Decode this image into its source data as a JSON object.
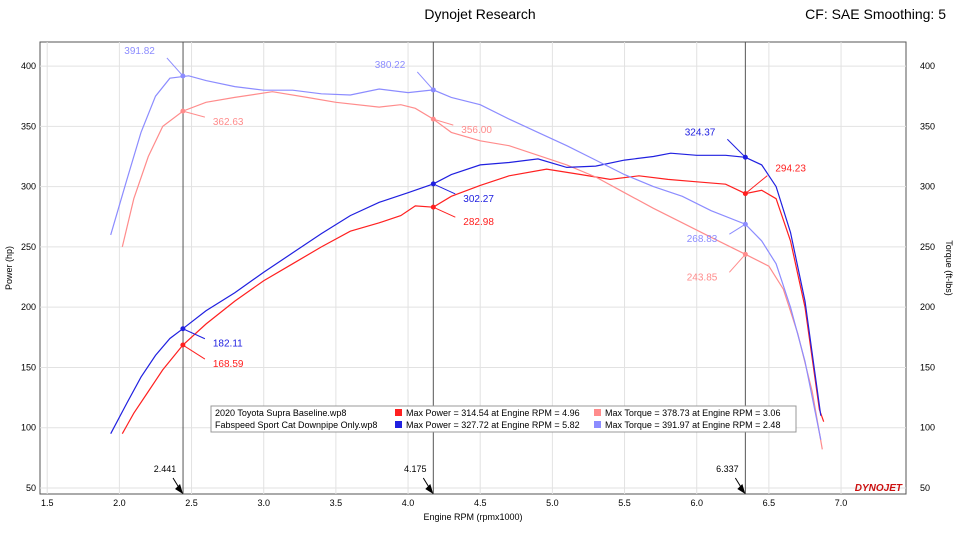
{
  "header": {
    "title": "Dynojet Research",
    "cf_text": "CF: SAE Smoothing: 5"
  },
  "colors": {
    "baseline_power": "#ff2020",
    "baseline_torque": "#ff8c8c",
    "fabspeed_power": "#2020e0",
    "fabspeed_torque": "#8c8cff"
  },
  "chart_data": {
    "type": "line",
    "xlabel": "Engine RPM (rpmx1000)",
    "ylabel_left": "Power (hp)",
    "ylabel_right": "Torque (ft-lbs)",
    "xlim": [
      1.45,
      7.45
    ],
    "ylim": [
      45,
      420
    ],
    "x_ticks": [
      "1.5",
      "2.0",
      "2.5",
      "3.0",
      "3.5",
      "4.0",
      "4.5",
      "5.0",
      "5.5",
      "6.0",
      "6.5",
      "7.0"
    ],
    "y_ticks": [
      "50",
      "100",
      "150",
      "200",
      "250",
      "300",
      "350",
      "400"
    ],
    "grid": true,
    "cursors": [
      {
        "x": 2.441,
        "label": "2.441"
      },
      {
        "x": 4.175,
        "label": "4.175"
      },
      {
        "x": 6.337,
        "label": "6.337"
      }
    ],
    "series": [
      {
        "name": "2020 Toyota Supra Baseline.wp8",
        "quantity": "Power",
        "x": [
          2.02,
          2.1,
          2.2,
          2.3,
          2.44,
          2.6,
          2.8,
          3.0,
          3.2,
          3.4,
          3.6,
          3.8,
          3.95,
          4.05,
          4.175,
          4.3,
          4.5,
          4.7,
          4.96,
          5.2,
          5.4,
          5.6,
          5.8,
          6.0,
          6.2,
          6.337,
          6.45,
          6.55,
          6.65,
          6.75,
          6.85,
          6.88
        ],
        "y": [
          95,
          112,
          130,
          148,
          168.59,
          186,
          205,
          222,
          236,
          250,
          263,
          270,
          276,
          284,
          282.98,
          292,
          301,
          309,
          314.54,
          310,
          306,
          309,
          306,
          304,
          302,
          294.23,
          297,
          290,
          255,
          200,
          115,
          105
        ]
      },
      {
        "name": "2020 Toyota Supra Baseline.wp8",
        "quantity": "Torque",
        "x": [
          2.02,
          2.1,
          2.2,
          2.3,
          2.44,
          2.6,
          2.8,
          3.06,
          3.3,
          3.5,
          3.8,
          3.95,
          4.05,
          4.175,
          4.3,
          4.5,
          4.7,
          4.9,
          5.1,
          5.3,
          5.5,
          5.7,
          5.9,
          6.1,
          6.337,
          6.5,
          6.6,
          6.7,
          6.8,
          6.87
        ],
        "y": [
          250,
          290,
          325,
          350,
          362.63,
          370,
          374,
          378.73,
          374,
          370,
          366,
          368,
          365,
          356.0,
          345,
          338,
          334,
          326,
          318,
          308,
          295,
          282,
          270,
          258,
          243.85,
          234,
          215,
          178,
          130,
          82
        ]
      },
      {
        "name": "Fabspeed Sport Cat Downpipe Only.wp8",
        "quantity": "Power",
        "x": [
          1.94,
          2.05,
          2.15,
          2.25,
          2.35,
          2.44,
          2.6,
          2.8,
          3.0,
          3.2,
          3.4,
          3.6,
          3.8,
          4.0,
          4.175,
          4.3,
          4.5,
          4.7,
          4.9,
          5.1,
          5.3,
          5.5,
          5.7,
          5.82,
          6.0,
          6.2,
          6.337,
          6.45,
          6.55,
          6.65,
          6.75,
          6.86
        ],
        "y": [
          95,
          120,
          142,
          160,
          174,
          182.11,
          197,
          212,
          229,
          245,
          261,
          276,
          287,
          295,
          302.27,
          310,
          318,
          320,
          323,
          316,
          317,
          322,
          325,
          327.72,
          326,
          326,
          324.37,
          318,
          300,
          262,
          205,
          110
        ]
      },
      {
        "name": "Fabspeed Sport Cat Downpipe Only.wp8",
        "quantity": "Torque",
        "x": [
          1.94,
          2.05,
          2.15,
          2.25,
          2.35,
          2.48,
          2.6,
          2.8,
          3.0,
          3.2,
          3.4,
          3.6,
          3.8,
          4.0,
          4.175,
          4.3,
          4.5,
          4.7,
          4.9,
          5.1,
          5.3,
          5.5,
          5.7,
          5.9,
          6.1,
          6.337,
          6.45,
          6.55,
          6.65,
          6.75,
          6.86
        ],
        "y": [
          260,
          305,
          345,
          375,
          390,
          391.97,
          388,
          383,
          380,
          380,
          377,
          376,
          381,
          378,
          380.22,
          374,
          368,
          356,
          345,
          334,
          322,
          310,
          300,
          292,
          280,
          268.83,
          255,
          236,
          200,
          155,
          90
        ]
      }
    ],
    "annotations": [
      {
        "text": "391.82",
        "series": 3,
        "x": 2.44,
        "y": 391.82
      },
      {
        "text": "362.63",
        "series": 1,
        "x": 2.44,
        "y": 362.63
      },
      {
        "text": "380.22",
        "series": 3,
        "x": 4.175,
        "y": 380.22
      },
      {
        "text": "356.00",
        "series": 1,
        "x": 4.175,
        "y": 356.0
      },
      {
        "text": "324.37",
        "series": 2,
        "x": 6.337,
        "y": 324.37
      },
      {
        "text": "294.23",
        "series": 0,
        "x": 6.337,
        "y": 294.23
      },
      {
        "text": "302.27",
        "series": 2,
        "x": 4.175,
        "y": 302.27
      },
      {
        "text": "282.98",
        "series": 0,
        "x": 4.175,
        "y": 282.98
      },
      {
        "text": "268.83",
        "series": 3,
        "x": 6.337,
        "y": 268.83
      },
      {
        "text": "243.85",
        "series": 1,
        "x": 6.337,
        "y": 243.85
      },
      {
        "text": "182.11",
        "series": 2,
        "x": 2.44,
        "y": 182.11
      },
      {
        "text": "168.59",
        "series": 0,
        "x": 2.44,
        "y": 168.59
      }
    ],
    "legend": {
      "placement": "bottom-center",
      "rows": [
        {
          "file": "2020 Toyota Supra Baseline.wp8",
          "power": "Max Power = 314.54 at Engine RPM = 4.96",
          "torque": "Max Torque = 378.73 at Engine RPM = 3.06"
        },
        {
          "file": "Fabspeed Sport Cat Downpipe Only.wp8",
          "power": "Max Power = 327.72 at Engine RPM = 5.82",
          "torque": "Max Torque = 391.97 at Engine RPM = 2.48"
        }
      ]
    },
    "logo": "DYNOJET"
  }
}
